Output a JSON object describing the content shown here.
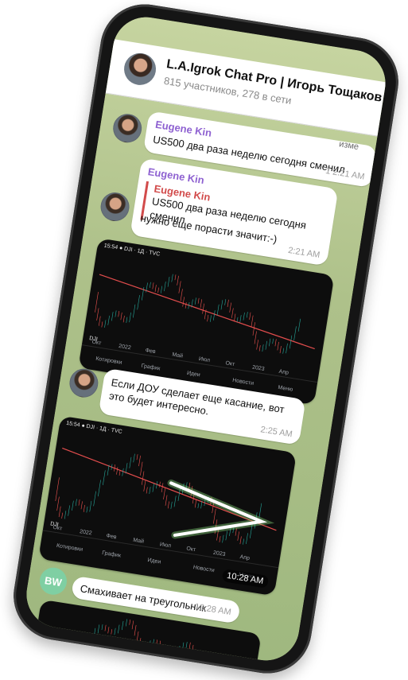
{
  "header": {
    "title": "L.A.Igrok Chat Pro | Игорь Тощаков",
    "subtitle": "815 участников, 278 в сети"
  },
  "messages": [
    {
      "sender": "Eugene Kin",
      "text": "US500 два раза неделю сегодня сменил",
      "time": "1 2:21 AM",
      "edited": "изме"
    },
    {
      "sender": "Eugene Kin",
      "reply_sender": "Eugene Kin",
      "reply_text": "US500 два раза неделю сегодня сменил",
      "text": "нужно еще порасти значит:-)",
      "time": "2:21 AM"
    },
    {
      "text": "Если ДОУ сделает еще касание, вот это будет интересно.",
      "time": "2:25 AM"
    },
    {
      "initials": "BW",
      "text": "Смахивает на треугольник",
      "time": "10:28 AM"
    }
  ],
  "chart1": {
    "top_bar": "15:54 ● DJI · 1Д · ТVC",
    "symbol": "DJI",
    "tabs": [
      "Котировки",
      "График",
      "Идеи",
      "Новости",
      "Меню"
    ],
    "x_labels": [
      "Окт",
      "2022",
      "Фев",
      "Май",
      "Июл",
      "Окт",
      "2023",
      "Апр"
    ]
  },
  "chart2": {
    "top_bar": "15:54 ● DJI · 1Д · ТVC",
    "symbol": "DJI",
    "tabs": [
      "Котировки",
      "График",
      "Идеи",
      "Новости",
      "Меню"
    ],
    "x_labels": [
      "Окт",
      "2022",
      "Фев",
      "Май",
      "Июл",
      "Окт",
      "2023",
      "Апр"
    ],
    "time": "10:28 AM"
  },
  "colors": {
    "accent": "#8e61d1",
    "reply": "#d24b4b",
    "trend": "#e34d4d",
    "glow": "#9dff8f"
  }
}
